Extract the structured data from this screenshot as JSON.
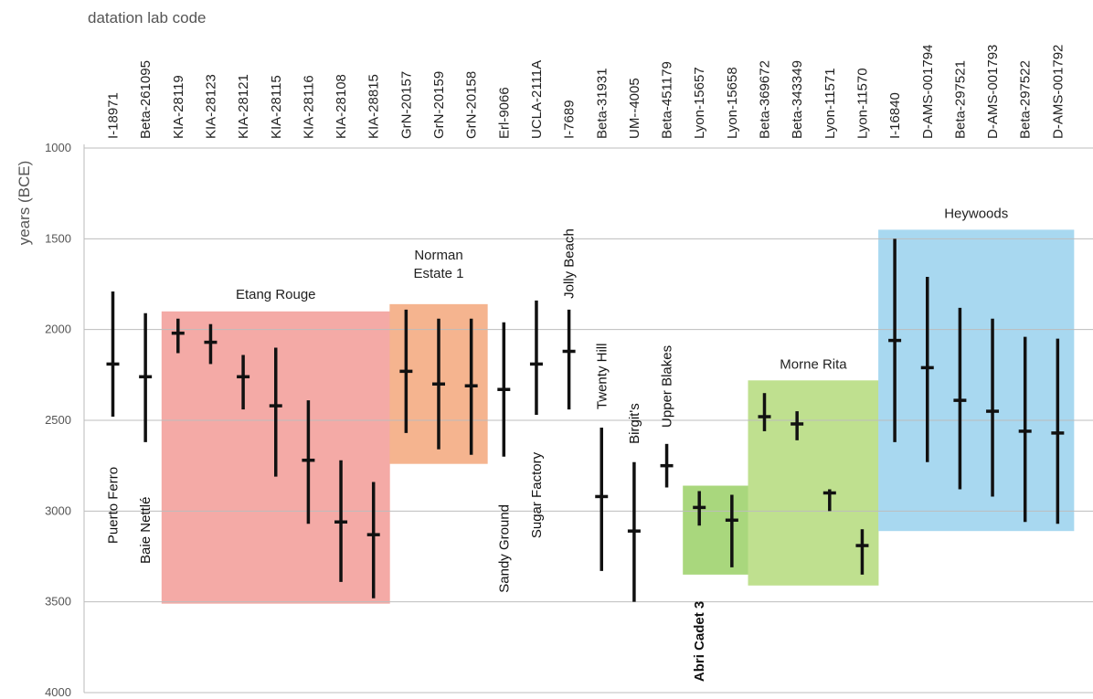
{
  "chart_data": {
    "type": "range",
    "xlabel": "datation lab code",
    "ylabel": "years (BCE)",
    "ylim": [
      1000,
      4000
    ],
    "yticks": [
      1000,
      1500,
      2000,
      2500,
      3000,
      3500,
      4000
    ],
    "y_inverted": true,
    "grid": true,
    "series_color": "#111111",
    "points": [
      {
        "code": "I-18971",
        "low": 1790,
        "high": 2480,
        "median": 2190
      },
      {
        "code": "Beta-261095",
        "low": 1910,
        "high": 2620,
        "median": 2260
      },
      {
        "code": "KIA-28119",
        "low": 1940,
        "high": 2130,
        "median": 2020
      },
      {
        "code": "KIA-28123",
        "low": 1970,
        "high": 2190,
        "median": 2070
      },
      {
        "code": "KIA-28121",
        "low": 2140,
        "high": 2440,
        "median": 2260
      },
      {
        "code": "KIA-28115",
        "low": 2100,
        "high": 2810,
        "median": 2420
      },
      {
        "code": "KIA-28116",
        "low": 2390,
        "high": 3070,
        "median": 2720
      },
      {
        "code": "KIA-28108",
        "low": 2720,
        "high": 3390,
        "median": 3060
      },
      {
        "code": "KIA-28815",
        "low": 2840,
        "high": 3480,
        "median": 3130
      },
      {
        "code": "GrN-20157",
        "low": 1890,
        "high": 2570,
        "median": 2230
      },
      {
        "code": "GrN-20159",
        "low": 1940,
        "high": 2660,
        "median": 2300
      },
      {
        "code": "GrN-20158",
        "low": 1940,
        "high": 2690,
        "median": 2310
      },
      {
        "code": "Erl-9066",
        "low": 1960,
        "high": 2700,
        "median": 2330
      },
      {
        "code": "UCLA-2111A",
        "low": 1840,
        "high": 2470,
        "median": 2190
      },
      {
        "code": "I-7689",
        "low": 1890,
        "high": 2440,
        "median": 2120
      },
      {
        "code": "Beta-31931",
        "low": 2540,
        "high": 3330,
        "median": 2920
      },
      {
        "code": "UM--4005",
        "low": 2730,
        "high": 3500,
        "median": 3110
      },
      {
        "code": "Beta-451179",
        "low": 2630,
        "high": 2870,
        "median": 2750
      },
      {
        "code": "Lyon-15657",
        "low": 2890,
        "high": 3080,
        "median": 2980
      },
      {
        "code": "Lyon-15658",
        "low": 2910,
        "high": 3310,
        "median": 3050
      },
      {
        "code": "Beta-369672",
        "low": 2350,
        "high": 2560,
        "median": 2480
      },
      {
        "code": "Beta-343349",
        "low": 2450,
        "high": 2610,
        "median": 2520
      },
      {
        "code": "Lyon-11571",
        "low": 2880,
        "high": 3000,
        "median": 2900
      },
      {
        "code": "Lyon-11570",
        "low": 3100,
        "high": 3350,
        "median": 3190
      },
      {
        "code": "I-16840",
        "low": 1500,
        "high": 2620,
        "median": 2060
      },
      {
        "code": "D-AMS-001794",
        "low": 1710,
        "high": 2730,
        "median": 2210
      },
      {
        "code": "Beta-297521",
        "low": 1880,
        "high": 2880,
        "median": 2390
      },
      {
        "code": "D-AMS-001793",
        "low": 1940,
        "high": 2920,
        "median": 2450
      },
      {
        "code": "Beta-297522",
        "low": 2040,
        "high": 3060,
        "median": 2560
      },
      {
        "code": "D-AMS-001792",
        "low": 2050,
        "high": 3070,
        "median": 2570
      }
    ],
    "groups": [
      {
        "label": [
          "Etang Rouge"
        ],
        "from": 2,
        "to": 8,
        "y_top": 1900,
        "y_bottom": 3510,
        "color": "#f4aaa6",
        "label_y": 1830
      },
      {
        "label": [
          "Norman",
          "Estate 1"
        ],
        "from": 9,
        "to": 11,
        "y_top": 1860,
        "y_bottom": 2740,
        "color": "#f5b48f",
        "label_y": 1615
      },
      {
        "label": [
          "Abri Cadet 3"
        ],
        "from": 18,
        "to": 19,
        "y_top": 2860,
        "y_bottom": 3350,
        "color": "#a9d77d",
        "label_y": null
      },
      {
        "label": [
          "Morne Rita"
        ],
        "from": 20,
        "to": 23,
        "y_top": 2280,
        "y_bottom": 3410,
        "color": "#bfe08f",
        "label_y": 2215
      },
      {
        "label": [
          "Heywoods"
        ],
        "from": 24,
        "to": 29,
        "y_top": 1450,
        "y_bottom": 3110,
        "color": "#a8d8f0",
        "label_y": 1385
      }
    ],
    "site_labels": [
      {
        "text": "Puerto Ferro",
        "index": 0,
        "y_start": 3180,
        "bold": false
      },
      {
        "text": "Baie Nettlé",
        "index": 1,
        "y_start": 3290,
        "bold": false
      },
      {
        "text": "Sandy Ground",
        "index": 12,
        "y_start": 3450,
        "bold": false
      },
      {
        "text": "Sugar Factory",
        "index": 13,
        "y_start": 3150,
        "bold": false
      },
      {
        "text": "Jolly Beach",
        "index": 14,
        "y_start": 1830,
        "bold": false
      },
      {
        "text": "Twenty Hill",
        "index": 15,
        "y_start": 2440,
        "bold": false
      },
      {
        "text": "Birgit's",
        "index": 16,
        "y_start": 2630,
        "bold": false
      },
      {
        "text": "Upper Blakes",
        "index": 17,
        "y_start": 2540,
        "bold": false
      },
      {
        "text": "Abri Cadet 3",
        "index": 18,
        "y_start": 3940,
        "bold": true
      }
    ]
  }
}
